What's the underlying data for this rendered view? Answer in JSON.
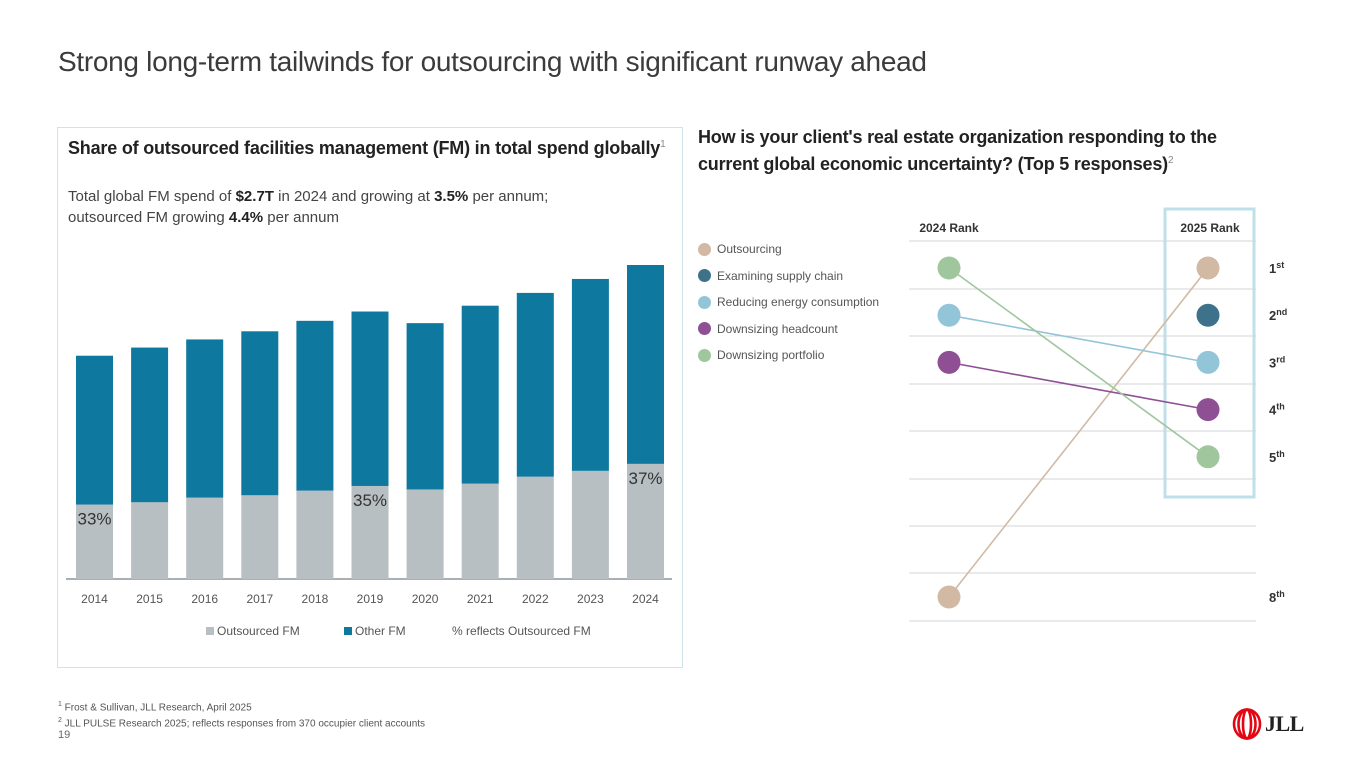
{
  "page": {
    "title": "Strong long-term tailwinds for outsourcing with significant runway ahead",
    "page_number": "19"
  },
  "left": {
    "title": "Share of outsourced facilities management (FM) in total spend globally",
    "title_sup": "1",
    "sub_line1_a": "Total global FM spend of ",
    "sub_line1_b": "$2.7T",
    "sub_line1_c": " in 2024 and growing at ",
    "sub_line1_d": "3.5%",
    "sub_line1_e": " per annum;",
    "sub_line2_a": "outsourced FM growing ",
    "sub_line2_b": "4.4%",
    "sub_line2_c": " per annum"
  },
  "right": {
    "title": "How is your client's real estate organization responding to the current global economic uncertainty? (Top 5 responses)",
    "title_sup": "2"
  },
  "footnotes": {
    "f1_sup": "1",
    "f1": " Frost & Sullivan, JLL Research, April 2025",
    "f2_sup": "2",
    "f2": " JLL PULSE Research 2025; reflects responses from 370 occupier client accounts"
  },
  "logo": {
    "text": "JLL",
    "color": "#e30613"
  },
  "chart_data": [
    {
      "type": "bar",
      "stacked": true,
      "title": "Share of outsourced facilities management (FM) in total spend globally",
      "units": "$T (estimated from bar heights; 2024 total = $2.7T)",
      "categories": [
        "2014",
        "2015",
        "2016",
        "2017",
        "2018",
        "2019",
        "2020",
        "2021",
        "2022",
        "2023",
        "2024"
      ],
      "series": [
        {
          "name": "Outsourced FM",
          "color": "#b8bfc2",
          "values": [
            0.64,
            0.66,
            0.7,
            0.72,
            0.76,
            0.8,
            0.77,
            0.82,
            0.88,
            0.93,
            0.99
          ]
        },
        {
          "name": "Other FM",
          "color": "#0f789e",
          "values": [
            1.28,
            1.33,
            1.36,
            1.41,
            1.46,
            1.5,
            1.43,
            1.53,
            1.58,
            1.65,
            1.71
          ]
        }
      ],
      "data_labels": [
        {
          "category": "2014",
          "text": "33%"
        },
        {
          "category": "2019",
          "text": "35%"
        },
        {
          "category": "2024",
          "text": "37%"
        }
      ],
      "legend": [
        "Outsourced FM",
        "Other FM"
      ],
      "legend_note": "% reflects Outsourced FM",
      "legend_position": "bottom",
      "ylim": [
        0,
        2.7
      ],
      "grid": false
    },
    {
      "type": "slope",
      "title": "How is your client's real estate organization responding to the current global economic uncertainty? (Top 5 responses)",
      "columns": [
        "2024 Rank",
        "2025 Rank"
      ],
      "rank_labels": [
        {
          "rank": 1,
          "base": "1",
          "suffix": "st"
        },
        {
          "rank": 2,
          "base": "2",
          "suffix": "nd"
        },
        {
          "rank": 3,
          "base": "3",
          "suffix": "rd"
        },
        {
          "rank": 4,
          "base": "4",
          "suffix": "th"
        },
        {
          "rank": 5,
          "base": "5",
          "suffix": "th"
        },
        {
          "rank": 8,
          "base": "8",
          "suffix": "th"
        }
      ],
      "series": [
        {
          "name": "Outsourcing",
          "color": "#d2b9a4",
          "rank_2024": 8,
          "rank_2025": 1
        },
        {
          "name": "Examining supply chain",
          "color": "#3e728b",
          "rank_2024": null,
          "rank_2025": 2
        },
        {
          "name": "Reducing energy consumption",
          "color": "#93c5d8",
          "rank_2024": 2,
          "rank_2025": 3
        },
        {
          "name": "Downsizing headcount",
          "color": "#8e4f95",
          "rank_2024": 3,
          "rank_2025": 4
        },
        {
          "name": "Downsizing portfolio",
          "color": "#9fc69d",
          "rank_2024": 1,
          "rank_2025": 5
        }
      ],
      "highlight_column": "2025 Rank",
      "highlight_color": "#bfe0e8",
      "legend_position": "left"
    }
  ]
}
